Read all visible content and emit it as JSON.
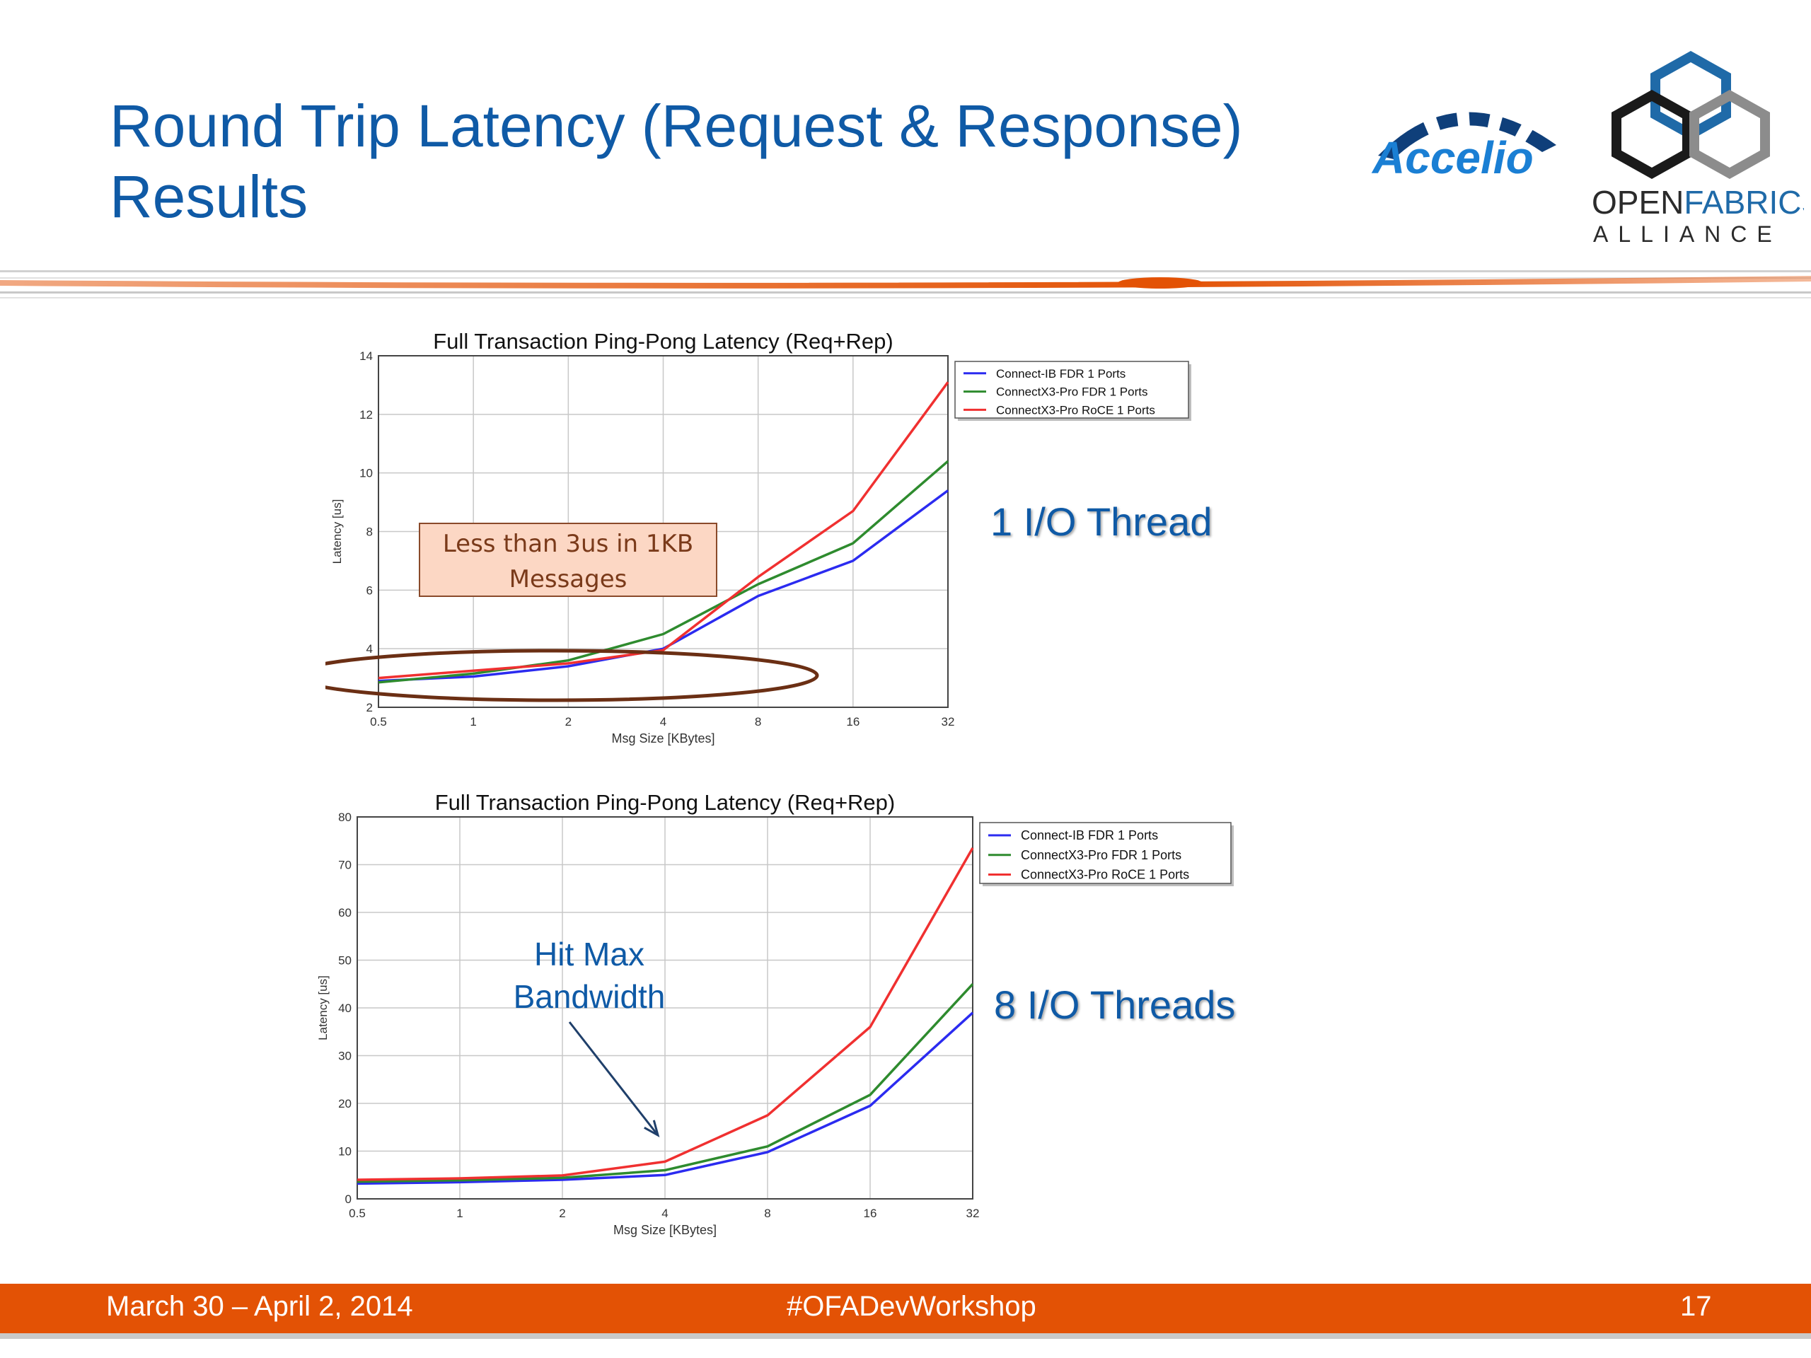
{
  "slide": {
    "title_line1": "Round Trip Latency (Request & Response)",
    "title_line2": "Results",
    "thread_label_1": "1 I/O Thread",
    "thread_label_8": "8 I/O Threads"
  },
  "logos": {
    "accelio": "Accelio",
    "ofa_line1_a": "OPEN",
    "ofa_line1_b": "FABRICS",
    "ofa_line2": "ALLIANCE"
  },
  "footer": {
    "date": "March 30 – April 2, 2014",
    "hashtag": "#OFADevWorkshop",
    "page": "17"
  },
  "colors": {
    "title_blue": "#0f5aa6",
    "footer_orange": "#e35205",
    "series_blue": "#2b2bf0",
    "series_green": "#2e8b2e",
    "series_red": "#f03030"
  },
  "chart_data": [
    {
      "type": "line",
      "title": "Full Transaction Ping-Pong Latency (Req+Rep)",
      "xlabel": "Msg Size [KBytes]",
      "ylabel": "Latency [us]",
      "x": [
        "0.5",
        "1",
        "2",
        "4",
        "8",
        "16",
        "32"
      ],
      "ylim": [
        2,
        14
      ],
      "yticks": [
        "2",
        "4",
        "6",
        "8",
        "10",
        "12",
        "14"
      ],
      "grid": true,
      "legend_position": "top-right",
      "series": [
        {
          "name": "Connect-IB FDR 1 Ports",
          "color": "#2b2bf0",
          "values": [
            2.9,
            3.05,
            3.4,
            4.0,
            5.8,
            7.0,
            9.4
          ]
        },
        {
          "name": "ConnectX3-Pro FDR 1 Ports",
          "color": "#2e8b2e",
          "values": [
            2.85,
            3.15,
            3.6,
            4.5,
            6.2,
            7.6,
            10.4
          ]
        },
        {
          "name": "ConnectX3-Pro RoCE 1 Ports",
          "color": "#f03030",
          "values": [
            3.0,
            3.25,
            3.5,
            3.95,
            6.45,
            8.7,
            13.1
          ]
        }
      ],
      "annotation": {
        "line1": "Less than 3us in 1KB",
        "line2": "Messages"
      }
    },
    {
      "type": "line",
      "title": "Full Transaction Ping-Pong Latency (Req+Rep)",
      "xlabel": "Msg Size [KBytes]",
      "ylabel": "Latency [us]",
      "x": [
        "0.5",
        "1",
        "2",
        "4",
        "8",
        "16",
        "32"
      ],
      "ylim": [
        0,
        80
      ],
      "yticks": [
        "0",
        "10",
        "20",
        "30",
        "40",
        "50",
        "60",
        "70",
        "80"
      ],
      "grid": true,
      "legend_position": "top-right",
      "series": [
        {
          "name": "Connect-IB FDR 1 Ports",
          "color": "#2b2bf0",
          "values": [
            3.2,
            3.5,
            4.0,
            5.0,
            9.8,
            19.5,
            39.0
          ]
        },
        {
          "name": "ConnectX3-Pro FDR 1 Ports",
          "color": "#2e8b2e",
          "values": [
            3.6,
            3.9,
            4.4,
            6.0,
            11.0,
            21.8,
            45.0
          ]
        },
        {
          "name": "ConnectX3-Pro RoCE 1 Ports",
          "color": "#f03030",
          "values": [
            4.0,
            4.3,
            4.9,
            7.8,
            17.5,
            36.0,
            73.5
          ]
        }
      ],
      "annotation": {
        "line1": "Hit Max",
        "line2": "Bandwidth"
      }
    }
  ]
}
